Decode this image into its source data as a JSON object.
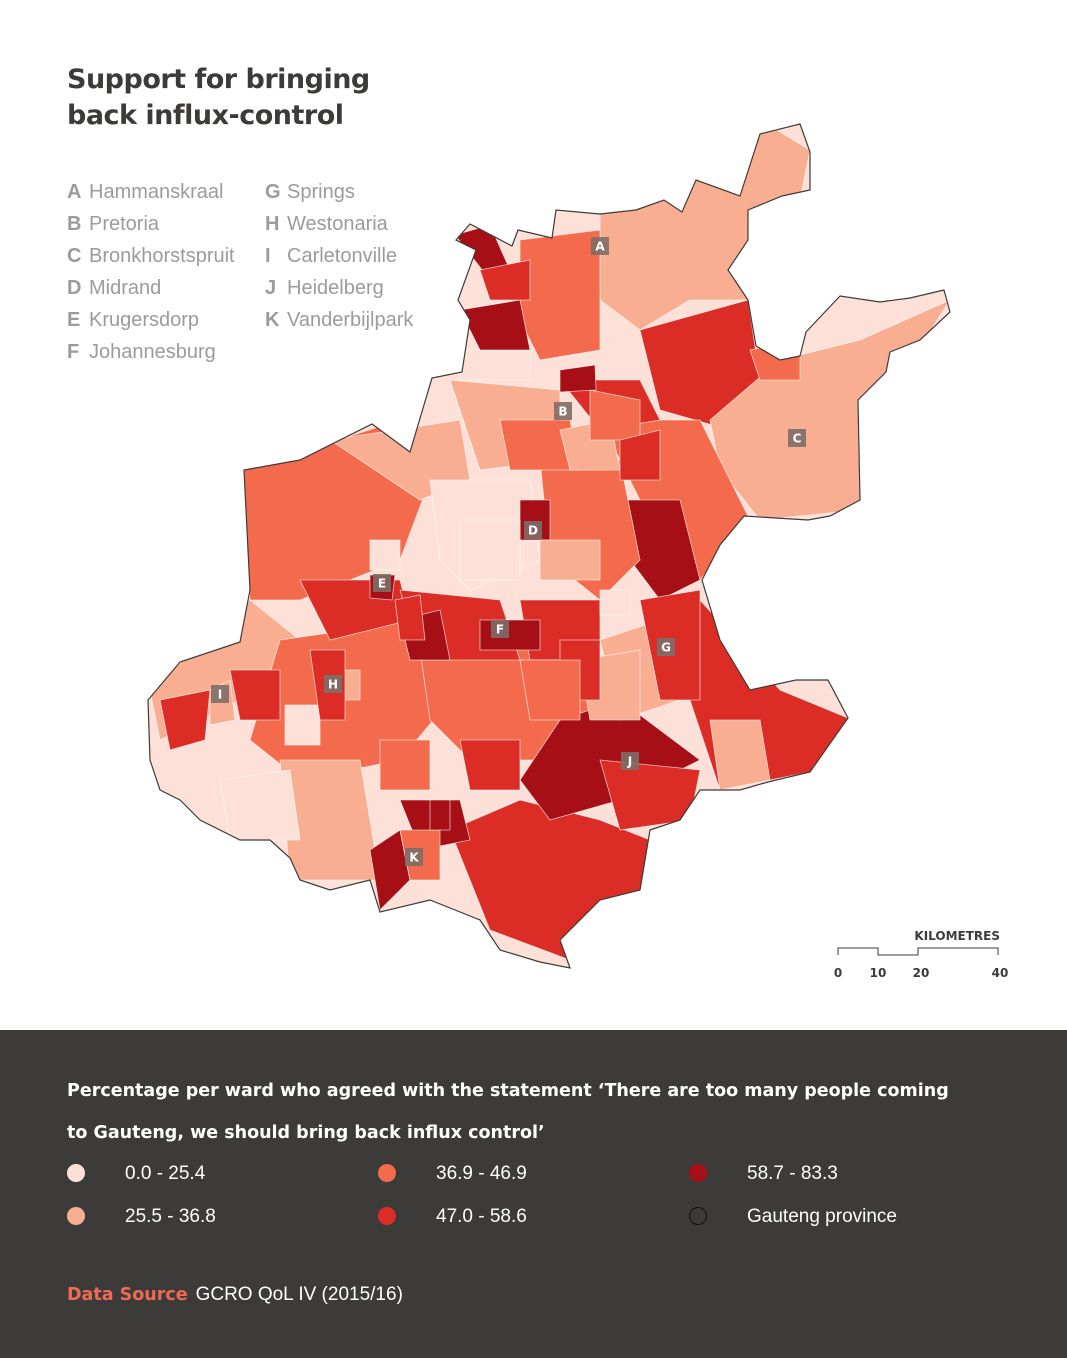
{
  "title": "Support for bringing back influx-control",
  "places": [
    {
      "letter": "A",
      "name": "Hammanskraal"
    },
    {
      "letter": "B",
      "name": "Pretoria"
    },
    {
      "letter": "C",
      "name": "Bronkhorstspruit"
    },
    {
      "letter": "D",
      "name": "Midrand"
    },
    {
      "letter": "E",
      "name": "Krugersdorp"
    },
    {
      "letter": "F",
      "name": "Johannesburg"
    },
    {
      "letter": "G",
      "name": "Springs"
    },
    {
      "letter": "H",
      "name": "Westonaria"
    },
    {
      "letter": "I",
      "name": "Carletonville"
    },
    {
      "letter": "J",
      "name": "Heidelberg"
    },
    {
      "letter": "K",
      "name": "Vanderbijlpark"
    }
  ],
  "scale_bar": {
    "unit": "KILOMETRES",
    "ticks": [
      "0",
      "10",
      "20",
      "40"
    ]
  },
  "legend": {
    "description": "Percentage per ward who agreed with the statement ‘There are too many people coming to Gauteng, we should bring back influx control’",
    "classes": [
      {
        "label": "0.0 - 25.4",
        "color": "#fde0d7"
      },
      {
        "label": "25.5 - 36.8",
        "color": "#f9ae92"
      },
      {
        "label": "36.9 - 46.9",
        "color": "#f46a4c"
      },
      {
        "label": "47.0 - 58.6",
        "color": "#dc2c26"
      },
      {
        "label": "58.7 - 83.3",
        "color": "#a50f15"
      },
      {
        "label": "Gauteng province",
        "color": "#3d3b39",
        "outline": true
      }
    ]
  },
  "source": {
    "label": "Data Source",
    "value": "GCRO QoL IV (2015/16)"
  }
}
